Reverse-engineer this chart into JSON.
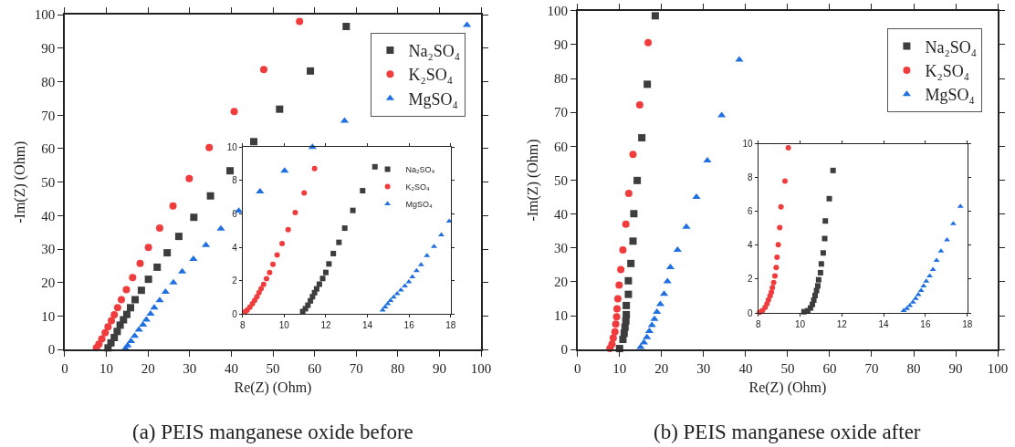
{
  "chart_data": [
    {
      "type": "scatter",
      "xlabel": "Re(Z) (Ohm)",
      "ylabel": "-Im(Z) (Ohm)",
      "xlim": [
        0,
        100
      ],
      "ylim": [
        0,
        100
      ],
      "xticks": [
        0,
        10,
        20,
        30,
        40,
        50,
        60,
        70,
        80,
        90,
        100
      ],
      "yticks": [
        0,
        10,
        20,
        30,
        40,
        50,
        60,
        70,
        80,
        90,
        100
      ],
      "legend": "top right",
      "annotations": [
        "(a) PEIS manganese oxide before"
      ],
      "series": [
        {
          "name": "Na₂SO₄",
          "color": "#3d3d3d",
          "marker": "square",
          "x": [
            67.6,
            59.0,
            51.6,
            45.4,
            39.7,
            35.0,
            31.0,
            27.4,
            24.6,
            22.2,
            20.1,
            18.4,
            16.9,
            15.8,
            14.9,
            14.1,
            13.3,
            12.6,
            11.9,
            11.1,
            10.4
          ],
          "values": [
            96.5,
            83.2,
            71.8,
            62.1,
            53.4,
            45.9,
            39.5,
            33.8,
            28.9,
            24.6,
            21.0,
            17.7,
            14.9,
            12.5,
            10.5,
            8.9,
            7.3,
            5.4,
            3.6,
            2.0,
            0.5
          ]
        },
        {
          "name": "K₂SO₄",
          "color": "#f03c3c",
          "marker": "circle",
          "x": [
            56.4,
            47.8,
            40.7,
            34.7,
            29.9,
            26.0,
            22.8,
            20.1,
            18.1,
            16.3,
            14.8,
            13.6,
            12.7,
            11.9,
            11.2,
            10.4,
            9.7,
            8.9,
            8.2,
            7.6
          ],
          "values": [
            98.0,
            83.6,
            71.1,
            60.3,
            51.1,
            42.9,
            36.3,
            30.5,
            25.7,
            21.5,
            17.9,
            14.9,
            12.5,
            10.4,
            8.6,
            6.8,
            5.0,
            3.2,
            1.6,
            0.5
          ]
        },
        {
          "name": "MgSO₄",
          "color": "#1f6fe0",
          "marker": "triangle",
          "x": [
            96.6,
            67.2,
            59.5,
            52.8,
            46.9,
            41.8,
            37.5,
            33.9,
            30.9,
            28.2,
            26.1,
            24.2,
            22.8,
            21.5,
            20.6,
            19.6,
            18.8,
            17.8,
            16.8,
            15.9,
            15.1,
            14.6
          ],
          "values": [
            96.9,
            68.3,
            60.5,
            53.4,
            47.2,
            41.4,
            36.1,
            31.2,
            27.0,
            23.3,
            20.0,
            17.2,
            14.7,
            12.5,
            10.7,
            8.9,
            7.4,
            5.9,
            4.1,
            2.5,
            1.2,
            0.3
          ]
        }
      ]
    },
    {
      "type": "scatter",
      "xlim": [
        8,
        18
      ],
      "ylim": [
        0,
        10
      ],
      "xticks": [
        8,
        10,
        12,
        14,
        16,
        18
      ],
      "yticks": [
        0,
        2,
        4,
        6,
        8,
        10
      ],
      "legend": "top right",
      "series": [
        {
          "name": "Na₂SO₄",
          "color": "#3d3d3d",
          "marker": "square",
          "x": [
            14.36,
            13.77,
            13.3,
            12.91,
            12.63,
            12.36,
            12.15,
            12.0,
            11.85,
            11.69,
            11.56,
            11.46,
            11.36,
            11.26,
            11.14,
            11.02,
            10.89
          ],
          "values": [
            8.82,
            7.39,
            6.21,
            5.15,
            4.3,
            3.63,
            3.01,
            2.5,
            2.14,
            1.8,
            1.52,
            1.29,
            1.05,
            0.8,
            0.54,
            0.33,
            0.16
          ]
        },
        {
          "name": "K₂SO₄",
          "color": "#f03c3c",
          "marker": "circle",
          "x": [
            11.46,
            10.96,
            10.53,
            10.19,
            9.9,
            9.66,
            9.46,
            9.3,
            9.15,
            9.01,
            8.89,
            8.79,
            8.69,
            8.58,
            8.47,
            8.35,
            8.22,
            8.13
          ],
          "values": [
            8.71,
            7.26,
            6.08,
            5.06,
            4.23,
            3.54,
            2.99,
            2.49,
            2.12,
            1.78,
            1.52,
            1.29,
            1.05,
            0.83,
            0.62,
            0.42,
            0.25,
            0.15
          ]
        },
        {
          "name": "MgSO₄",
          "color": "#1f6fe0",
          "marker": "triangle",
          "x": [
            17.93,
            17.55,
            17.2,
            16.86,
            16.58,
            16.36,
            16.16,
            15.99,
            15.8,
            15.61,
            15.43,
            15.26,
            15.11,
            14.98,
            14.85,
            14.73
          ],
          "values": [
            5.57,
            4.75,
            4.05,
            3.5,
            2.96,
            2.61,
            2.23,
            1.94,
            1.69,
            1.45,
            1.23,
            1.02,
            0.82,
            0.62,
            0.44,
            0.25
          ]
        }
      ]
    },
    {
      "type": "scatter",
      "xlabel": "Re(Z) (Ohm)",
      "ylabel": "-Im(Z) (Ohm)",
      "xlim": [
        0,
        100
      ],
      "ylim": [
        0,
        100
      ],
      "xticks": [
        0,
        10,
        20,
        30,
        40,
        50,
        60,
        70,
        80,
        90,
        100
      ],
      "yticks": [
        0,
        10,
        20,
        30,
        40,
        50,
        60,
        70,
        80,
        90,
        100
      ],
      "legend": "top right",
      "annotations": [
        "(b) PEIS manganese oxide after"
      ],
      "series": [
        {
          "name": "Na₂SO₄",
          "color": "#3d3d3d",
          "marker": "square",
          "x": [
            18.5,
            16.6,
            15.3,
            14.2,
            13.4,
            13.2,
            12.7,
            12.1,
            12.1,
            11.6,
            11.6,
            11.5,
            11.3,
            11.1,
            10.8,
            10.0
          ],
          "values": [
            98.5,
            78.3,
            62.5,
            49.9,
            40.1,
            32.0,
            25.4,
            20.3,
            16.3,
            13.0,
            10.3,
            8.4,
            6.6,
            4.8,
            3.0,
            0.3
          ]
        },
        {
          "name": "K₂SO₄",
          "color": "#f03c3c",
          "marker": "circle",
          "x": [
            16.8,
            14.8,
            13.2,
            12.2,
            11.5,
            10.8,
            10.3,
            9.9,
            9.6,
            9.4,
            9.3,
            9.1,
            8.9,
            8.5,
            8.2,
            7.7
          ],
          "values": [
            90.6,
            72.2,
            57.6,
            46.1,
            37.0,
            29.4,
            23.6,
            19.0,
            15.0,
            12.0,
            9.7,
            7.5,
            5.2,
            3.4,
            1.6,
            0.3
          ]
        },
        {
          "name": "MgSO₄",
          "color": "#1f6fe0",
          "marker": "triangle",
          "x": [
            38.5,
            34.3,
            30.9,
            28.3,
            25.9,
            23.8,
            22.1,
            21.4,
            20.6,
            19.7,
            18.9,
            18.3,
            17.7,
            17.1,
            16.5,
            15.8,
            15.0
          ],
          "values": [
            85.5,
            69.1,
            55.8,
            45.0,
            36.2,
            29.4,
            24.3,
            20.1,
            16.4,
            13.4,
            11.1,
            9.0,
            7.2,
            5.4,
            3.6,
            2.1,
            0.7
          ]
        }
      ]
    },
    {
      "type": "scatter",
      "xlim": [
        8,
        18
      ],
      "ylim": [
        0,
        10
      ],
      "xticks": [
        8,
        10,
        12,
        14,
        16,
        18
      ],
      "yticks": [
        0,
        2,
        4,
        6,
        8,
        10
      ],
      "series": [
        {
          "color": "#3d3d3d",
          "marker": "square",
          "x": [
            11.58,
            11.4,
            11.21,
            11.18,
            11.11,
            11.02,
            10.98,
            10.89,
            10.85,
            10.79,
            10.72,
            10.66,
            10.59,
            10.5,
            10.37,
            10.19
          ],
          "values": [
            8.43,
            6.76,
            5.44,
            4.4,
            3.55,
            2.9,
            2.38,
            1.96,
            1.6,
            1.32,
            1.03,
            0.76,
            0.5,
            0.29,
            0.13,
            0.07
          ]
        },
        {
          "color": "#f03c3c",
          "marker": "circle",
          "x": [
            9.44,
            9.28,
            9.09,
            9.03,
            8.96,
            8.9,
            8.86,
            8.8,
            8.74,
            8.68,
            8.63,
            8.57,
            8.49,
            8.42,
            8.33,
            8.2,
            8.07
          ],
          "values": [
            9.77,
            7.8,
            6.27,
            5.05,
            4.04,
            3.3,
            2.68,
            2.18,
            1.8,
            1.5,
            1.23,
            1.01,
            0.77,
            0.54,
            0.32,
            0.13,
            0.04
          ]
        },
        {
          "color": "#1f6fe0",
          "marker": "triangle",
          "x": [
            17.67,
            17.33,
            17.03,
            16.74,
            16.53,
            16.36,
            16.2,
            16.04,
            15.91,
            15.79,
            15.66,
            15.53,
            15.4,
            15.25,
            15.11,
            14.96
          ],
          "values": [
            6.31,
            5.28,
            4.32,
            3.66,
            3.1,
            2.56,
            2.18,
            1.87,
            1.59,
            1.32,
            1.08,
            0.85,
            0.63,
            0.43,
            0.25,
            0.13
          ]
        }
      ]
    }
  ]
}
